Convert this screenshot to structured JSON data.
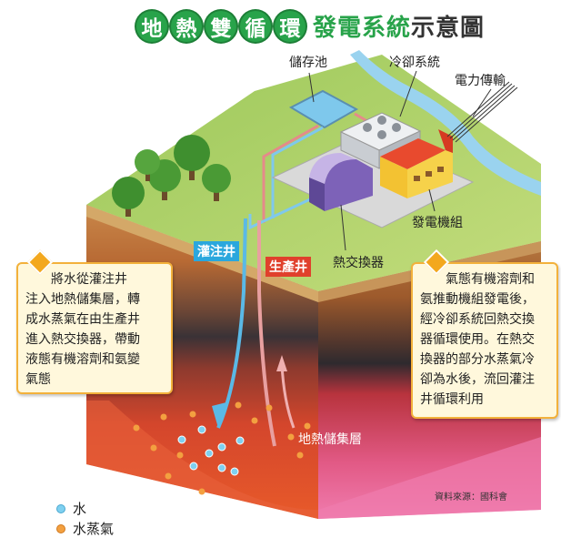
{
  "title": {
    "chars": [
      "地",
      "熱",
      "雙",
      "循",
      "環"
    ],
    "green_part": "發電系統",
    "dark_part": "示意圖"
  },
  "labels": {
    "storage_pond": "儲存池",
    "cooling_system": "冷卻系統",
    "power_transmission": "電力傳輸",
    "generator_unit": "發電機組",
    "heat_exchanger": "熱交換器",
    "injection_well": "灌注井",
    "production_well": "生產井",
    "reservoir": "地熱儲集層"
  },
  "callout_left": {
    "lines": [
      "將水從灌注井",
      "注入地熱儲集層，轉",
      "成水蒸氣在由生產井",
      "進入熱交換器，帶動",
      "液態有機溶劑和氨變",
      "氣態"
    ]
  },
  "callout_right": {
    "lines": [
      "氣態有機溶劑和",
      "氨推動機組發電後，",
      "經冷卻系統回熱交換",
      "器循環使用。在熱交",
      "換器的部分水蒸氣冷",
      "卻為水後，流回灌注",
      "井循環利用"
    ]
  },
  "legend": {
    "water": "水",
    "steam": "水蒸氣"
  },
  "source": "資料來源：國科會",
  "colors": {
    "water_dot": "#7fd0f0",
    "steam_dot": "#f3a040",
    "title_green": "#28a34a",
    "injection_tag": "#2aa7dd",
    "production_tag": "#e0402c",
    "callout_border": "#f3b13b"
  }
}
